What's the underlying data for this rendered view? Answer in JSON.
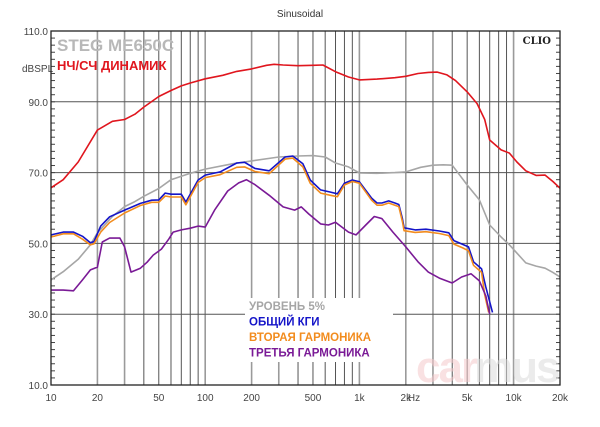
{
  "chart_data": {
    "type": "line",
    "title": "Sinusoidal",
    "xlabel": "Hz",
    "ylabel": "dBSPL",
    "xscale": "log",
    "xlim": [
      10,
      20000
    ],
    "ylim": [
      10,
      110
    ],
    "grid": true,
    "x_ticks": [
      {
        "v": 10,
        "label": "10"
      },
      {
        "v": 20,
        "label": "20"
      },
      {
        "v": 50,
        "label": "50"
      },
      {
        "v": 100,
        "label": "100"
      },
      {
        "v": 200,
        "label": "200"
      },
      {
        "v": 500,
        "label": "500"
      },
      {
        "v": 1000,
        "label": "1k"
      },
      {
        "v": 2000,
        "label": "2k"
      },
      {
        "v": 5000,
        "label": "5k"
      },
      {
        "v": 10000,
        "label": "10k"
      },
      {
        "v": 20000,
        "label": "20k"
      }
    ],
    "y_ticks": [
      {
        "v": 110,
        "label": "110.0"
      },
      {
        "v": 90,
        "label": "90.0"
      },
      {
        "v": 70,
        "label": "70.0"
      },
      {
        "v": 50,
        "label": "50.0"
      },
      {
        "v": 30,
        "label": "30.0"
      },
      {
        "v": 10,
        "label": "10.0"
      }
    ],
    "annotations": {
      "model": "STEG ME650C",
      "driver_type": "НЧ/СЧ ДИНАМИК",
      "software": "CLIO",
      "watermark_a": "car",
      "watermark_b": "mus"
    },
    "legend_position": "bottom-center",
    "series": [
      {
        "name": "НЧ/СЧ ДИНАМИК",
        "color": "#e0161e",
        "in_legend": false,
        "points": [
          [
            10,
            65.7
          ],
          [
            12,
            68
          ],
          [
            15,
            73
          ],
          [
            20,
            82
          ],
          [
            25,
            84.5
          ],
          [
            30,
            85
          ],
          [
            35,
            86.5
          ],
          [
            40,
            88.5
          ],
          [
            50,
            91.5
          ],
          [
            60,
            93.2
          ],
          [
            70,
            94.5
          ],
          [
            80,
            95.3
          ],
          [
            100,
            96.5
          ],
          [
            130,
            97.5
          ],
          [
            160,
            98.6
          ],
          [
            200,
            99.3
          ],
          [
            250,
            100.3
          ],
          [
            280,
            100.6
          ],
          [
            320,
            100.4
          ],
          [
            400,
            100.2
          ],
          [
            500,
            100.3
          ],
          [
            580,
            100.4
          ],
          [
            700,
            98.5
          ],
          [
            850,
            97
          ],
          [
            1000,
            96.2
          ],
          [
            1300,
            96.4
          ],
          [
            1700,
            96.8
          ],
          [
            2000,
            97.2
          ],
          [
            2400,
            98
          ],
          [
            2800,
            98.3
          ],
          [
            3200,
            98.4
          ],
          [
            3700,
            97.6
          ],
          [
            4200,
            96
          ],
          [
            5000,
            92.8
          ],
          [
            5800,
            89.5
          ],
          [
            6500,
            85
          ],
          [
            7000,
            79.2
          ],
          [
            8300,
            76.4
          ],
          [
            9400,
            75.5
          ],
          [
            10500,
            73
          ],
          [
            12000,
            70.5
          ],
          [
            14000,
            69.2
          ],
          [
            16000,
            69.3
          ],
          [
            18000,
            67.5
          ],
          [
            20000,
            65.6
          ]
        ]
      },
      {
        "name": "УРОВЕНЬ 5%",
        "color": "#a6a6a6",
        "points": [
          [
            10,
            39.7
          ],
          [
            12,
            42
          ],
          [
            15,
            45.5
          ],
          [
            18,
            49.6
          ],
          [
            20,
            53
          ],
          [
            25,
            57.6
          ],
          [
            30,
            60.4
          ],
          [
            35,
            61.8
          ],
          [
            40,
            63.3
          ],
          [
            50,
            65.5
          ],
          [
            60,
            68
          ],
          [
            80,
            69.8
          ],
          [
            100,
            71
          ],
          [
            150,
            72.5
          ],
          [
            200,
            73.3
          ],
          [
            300,
            74.4
          ],
          [
            400,
            74.7
          ],
          [
            500,
            74.8
          ],
          [
            600,
            74.4
          ],
          [
            700,
            72.7
          ],
          [
            850,
            71.6
          ],
          [
            1000,
            69.9
          ],
          [
            1300,
            69.8
          ],
          [
            1700,
            70
          ],
          [
            2000,
            70.2
          ],
          [
            2500,
            71.5
          ],
          [
            3000,
            72.1
          ],
          [
            3500,
            72.2
          ],
          [
            4000,
            72.1
          ],
          [
            5000,
            66.5
          ],
          [
            6000,
            62.3
          ],
          [
            7000,
            55.2
          ],
          [
            8300,
            51.8
          ],
          [
            9400,
            49.6
          ],
          [
            12000,
            44.5
          ],
          [
            14000,
            43.6
          ],
          [
            16000,
            43
          ],
          [
            18000,
            41.8
          ],
          [
            20000,
            40.5
          ]
        ]
      },
      {
        "name": "ОБЩИЙ КГИ",
        "color": "#1414c8",
        "points": [
          [
            10,
            52.4
          ],
          [
            12,
            53.2
          ],
          [
            14,
            53.2
          ],
          [
            16,
            52
          ],
          [
            18,
            50.2
          ],
          [
            19,
            50.5
          ],
          [
            21,
            54.9
          ],
          [
            24,
            57.5
          ],
          [
            30,
            59.4
          ],
          [
            38,
            61.3
          ],
          [
            45,
            62.2
          ],
          [
            50,
            62.3
          ],
          [
            55,
            64.2
          ],
          [
            60,
            63.9
          ],
          [
            70,
            63.9
          ],
          [
            75,
            61.7
          ],
          [
            90,
            67.9
          ],
          [
            100,
            69.3
          ],
          [
            125,
            70.2
          ],
          [
            160,
            72.7
          ],
          [
            180,
            72.9
          ],
          [
            210,
            71.2
          ],
          [
            260,
            70.5
          ],
          [
            330,
            74.4
          ],
          [
            370,
            74.7
          ],
          [
            430,
            72.5
          ],
          [
            480,
            67.9
          ],
          [
            560,
            65.1
          ],
          [
            650,
            64.5
          ],
          [
            720,
            64
          ],
          [
            800,
            67
          ],
          [
            900,
            67.9
          ],
          [
            1000,
            67.4
          ],
          [
            1200,
            62.8
          ],
          [
            1300,
            61.4
          ],
          [
            1400,
            61.4
          ],
          [
            1550,
            62
          ],
          [
            1700,
            61.4
          ],
          [
            1800,
            61
          ],
          [
            1900,
            57
          ],
          [
            1950,
            54.4
          ],
          [
            2300,
            53.8
          ],
          [
            2700,
            54
          ],
          [
            3300,
            53.5
          ],
          [
            3800,
            53
          ],
          [
            4100,
            50.8
          ],
          [
            4700,
            49.7
          ],
          [
            5100,
            49
          ],
          [
            5500,
            44.8
          ],
          [
            6200,
            42.8
          ],
          [
            6600,
            37.7
          ],
          [
            7300,
            30.5
          ]
        ]
      },
      {
        "name": "ВТОРАЯ ГАРМОНИКА",
        "color": "#f28c1e",
        "points": [
          [
            10,
            51.8
          ],
          [
            12,
            52.7
          ],
          [
            14,
            52.7
          ],
          [
            16,
            51.2
          ],
          [
            18,
            49.6
          ],
          [
            19,
            49.9
          ],
          [
            21,
            53.2
          ],
          [
            24,
            55.9
          ],
          [
            30,
            58.6
          ],
          [
            38,
            60.7
          ],
          [
            45,
            61.6
          ],
          [
            50,
            61.6
          ],
          [
            55,
            63.4
          ],
          [
            60,
            63.1
          ],
          [
            70,
            63.1
          ],
          [
            75,
            60.9
          ],
          [
            90,
            67.2
          ],
          [
            100,
            68.6
          ],
          [
            125,
            69.4
          ],
          [
            160,
            71.5
          ],
          [
            180,
            71.6
          ],
          [
            210,
            70.3
          ],
          [
            260,
            69.7
          ],
          [
            330,
            73.8
          ],
          [
            370,
            74.1
          ],
          [
            430,
            71.6
          ],
          [
            480,
            67
          ],
          [
            560,
            64.2
          ],
          [
            650,
            63.6
          ],
          [
            720,
            63.2
          ],
          [
            800,
            66.5
          ],
          [
            900,
            67.5
          ],
          [
            1000,
            67
          ],
          [
            1200,
            62.2
          ],
          [
            1300,
            60.8
          ],
          [
            1400,
            60.8
          ],
          [
            1550,
            61.4
          ],
          [
            1700,
            60.8
          ],
          [
            1800,
            60.4
          ],
          [
            1900,
            56.2
          ],
          [
            1950,
            53.6
          ],
          [
            2300,
            53.1
          ],
          [
            2700,
            53.3
          ],
          [
            3300,
            52.8
          ],
          [
            3800,
            52.2
          ],
          [
            4100,
            49.8
          ],
          [
            4700,
            48.7
          ],
          [
            5100,
            47.9
          ],
          [
            5500,
            43.8
          ],
          [
            6200,
            41.8
          ],
          [
            6500,
            35.5
          ],
          [
            6900,
            30.5
          ]
        ]
      },
      {
        "name": "ТРЕТЬЯ ГАРМОНИКА",
        "color": "#7a1a96",
        "points": [
          [
            10,
            36.8
          ],
          [
            12,
            36.8
          ],
          [
            14,
            36.6
          ],
          [
            16,
            39.7
          ],
          [
            18,
            42.5
          ],
          [
            20,
            43.3
          ],
          [
            21.5,
            50.4
          ],
          [
            24,
            51.5
          ],
          [
            28,
            51.5
          ],
          [
            30,
            49
          ],
          [
            33,
            41.9
          ],
          [
            38,
            43
          ],
          [
            42,
            44.7
          ],
          [
            46,
            46.7
          ],
          [
            52,
            48.4
          ],
          [
            58,
            51.2
          ],
          [
            62,
            53.2
          ],
          [
            70,
            53.8
          ],
          [
            80,
            54.3
          ],
          [
            90,
            54.9
          ],
          [
            100,
            54.6
          ],
          [
            115,
            59.4
          ],
          [
            140,
            64.8
          ],
          [
            165,
            67.1
          ],
          [
            185,
            68
          ],
          [
            210,
            66.6
          ],
          [
            260,
            63.6
          ],
          [
            320,
            60.3
          ],
          [
            380,
            59.4
          ],
          [
            420,
            60.3
          ],
          [
            470,
            58.3
          ],
          [
            560,
            55.5
          ],
          [
            630,
            55.2
          ],
          [
            700,
            56
          ],
          [
            850,
            53.2
          ],
          [
            950,
            52.4
          ],
          [
            1100,
            55.2
          ],
          [
            1250,
            57.6
          ],
          [
            1400,
            57
          ],
          [
            1650,
            53.2
          ],
          [
            2000,
            49
          ],
          [
            2400,
            44.8
          ],
          [
            2800,
            41.9
          ],
          [
            3300,
            40.2
          ],
          [
            4000,
            38.8
          ],
          [
            4600,
            40.5
          ],
          [
            5300,
            41.4
          ],
          [
            6000,
            39.4
          ],
          [
            6600,
            35.2
          ],
          [
            7000,
            30
          ]
        ]
      }
    ]
  }
}
